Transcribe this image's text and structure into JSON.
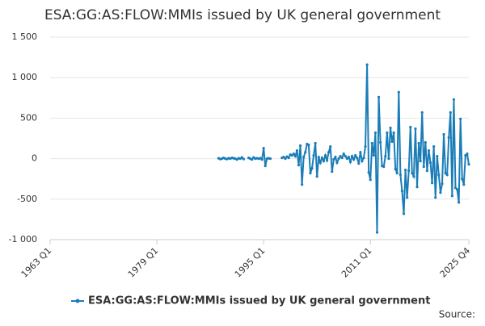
{
  "chart_data": {
    "type": "line",
    "title": "ESA:GG:AS:FLOW:MMIs issued by UK general government",
    "source": "Source:",
    "categories": [
      "1963 Q1",
      null,
      null,
      null,
      null,
      null,
      null,
      null,
      null,
      null,
      null,
      null,
      null,
      null,
      null,
      null,
      null,
      null,
      null,
      null,
      null,
      null,
      null,
      null,
      null,
      null,
      null,
      null,
      null,
      null,
      null,
      null,
      null,
      null,
      null,
      null,
      null,
      null,
      null,
      null,
      null,
      null,
      null,
      null,
      null,
      null,
      null,
      null,
      null,
      null,
      null,
      null,
      null,
      null,
      null,
      null,
      null,
      null,
      null,
      null,
      null,
      null,
      null,
      null,
      "1979 Q1",
      null,
      null,
      null,
      null,
      null,
      null,
      null,
      null,
      null,
      null,
      null,
      null,
      null,
      null,
      null,
      null,
      null,
      null,
      null,
      null,
      null,
      null,
      null,
      null,
      null,
      null,
      null,
      null,
      null,
      null,
      null,
      null,
      null,
      null,
      null,
      null,
      null,
      null,
      null,
      null,
      null,
      null,
      null,
      null,
      null,
      null,
      null,
      null,
      null,
      null,
      null,
      null,
      null,
      null,
      null,
      null,
      null,
      null,
      null,
      null,
      null,
      null,
      null,
      "1995 Q1",
      null,
      null,
      null,
      null,
      null,
      null,
      null,
      null,
      null,
      null,
      null,
      null,
      null,
      null,
      null,
      null,
      null,
      null,
      null,
      null,
      null,
      null,
      null,
      null,
      null,
      null,
      null,
      null,
      null,
      null,
      null,
      null,
      null,
      null,
      null,
      null,
      null,
      null,
      null,
      null,
      null,
      null,
      null,
      null,
      null,
      null,
      null,
      null,
      null,
      null,
      null,
      null,
      null,
      null,
      null,
      null,
      null,
      null,
      null,
      null,
      null,
      null,
      null,
      "2011 Q1",
      null,
      null,
      null,
      null,
      null,
      null,
      null,
      null,
      null,
      null,
      null,
      null,
      null,
      null,
      null,
      null,
      null,
      null,
      null,
      null,
      null,
      null,
      null,
      null,
      null,
      null,
      null,
      null,
      null,
      null,
      null,
      null,
      null,
      null,
      null,
      null,
      null,
      null,
      null,
      null,
      null,
      null,
      null,
      null,
      null,
      null,
      null,
      null,
      null,
      null,
      null,
      null,
      null,
      null,
      null,
      null,
      null,
      null,
      "2025 Q4"
    ],
    "series": [
      {
        "name": "ESA:GG:AS:FLOW:MMIs issued by UK general government",
        "color": "#1a7db8",
        "values": [
          null,
          null,
          null,
          null,
          null,
          null,
          null,
          null,
          null,
          null,
          null,
          null,
          null,
          null,
          null,
          null,
          null,
          null,
          null,
          null,
          null,
          null,
          null,
          null,
          null,
          null,
          null,
          null,
          null,
          null,
          null,
          null,
          null,
          null,
          null,
          null,
          null,
          null,
          null,
          null,
          null,
          null,
          null,
          null,
          null,
          null,
          null,
          null,
          null,
          null,
          null,
          null,
          null,
          null,
          null,
          null,
          null,
          null,
          null,
          null,
          null,
          null,
          null,
          null,
          null,
          null,
          null,
          null,
          null,
          null,
          null,
          null,
          null,
          null,
          null,
          null,
          null,
          null,
          null,
          null,
          null,
          null,
          null,
          null,
          null,
          null,
          null,
          null,
          null,
          null,
          null,
          null,
          null,
          null,
          null,
          null,
          null,
          null,
          null,
          null,
          null,
          5,
          -5,
          0,
          10,
          0,
          -5,
          5,
          0,
          10,
          5,
          0,
          -10,
          5,
          0,
          15,
          -5,
          null,
          null,
          10,
          0,
          -10,
          15,
          0,
          5,
          0,
          5,
          -10,
          130,
          -90,
          0,
          5,
          0,
          null,
          null,
          null,
          null,
          null,
          null,
          10,
          20,
          0,
          25,
          10,
          50,
          40,
          60,
          30,
          100,
          -80,
          160,
          -320,
          20,
          80,
          180,
          170,
          -180,
          -120,
          40,
          190,
          -220,
          20,
          -50,
          10,
          -30,
          40,
          -20,
          80,
          150,
          -160,
          -10,
          20,
          -50,
          0,
          30,
          10,
          60,
          30,
          0,
          20,
          -40,
          30,
          -10,
          40,
          10,
          -60,
          80,
          -30,
          10,
          150,
          1160,
          -170,
          -260,
          190,
          40,
          320,
          -910,
          760,
          200,
          -90,
          -100,
          30,
          320,
          0,
          380,
          210,
          320,
          -130,
          -180,
          820,
          -200,
          -400,
          -680,
          -140,
          -480,
          -150,
          390,
          -180,
          -220,
          370,
          -350,
          190,
          -30,
          570,
          -100,
          200,
          -150,
          100,
          -50,
          -300,
          150,
          -480,
          30,
          -200,
          -420,
          -310,
          300,
          -180,
          -200,
          260,
          570,
          -460,
          730,
          -360,
          -380,
          -540,
          490,
          -250,
          -320,
          40,
          60,
          -70
        ]
      }
    ],
    "ylim": [
      -1000,
      1500
    ],
    "yticks": [
      {
        "value": -1000,
        "label": "-1 000"
      },
      -500,
      0,
      500,
      {
        "value": 1000,
        "label": "1 000"
      },
      {
        "value": 1500,
        "label": "1 500"
      }
    ],
    "grid": true,
    "legend": "bottom"
  }
}
